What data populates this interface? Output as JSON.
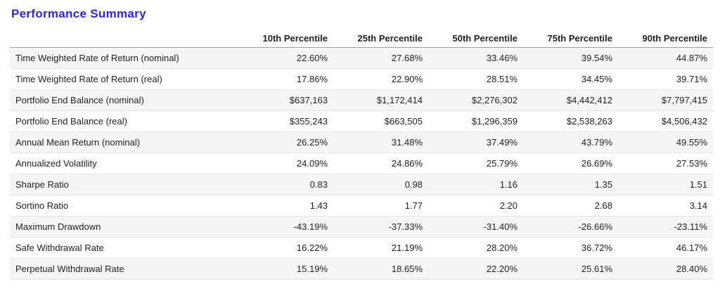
{
  "page": {
    "title": "Performance Summary"
  },
  "colors": {
    "accent": "#2c24ee",
    "stripe": "#f5f5f5",
    "header-border": "#9e9e9e",
    "row-border": "#e4e4e4"
  },
  "chart_data": {
    "type": "table",
    "title": "Performance Summary",
    "columns": [
      "",
      "10th Percentile",
      "25th Percentile",
      "50th Percentile",
      "75th Percentile",
      "90th Percentile"
    ],
    "rows": [
      {
        "label": "Time Weighted Rate of Return (nominal)",
        "values": [
          "22.60%",
          "27.68%",
          "33.46%",
          "39.54%",
          "44.87%"
        ]
      },
      {
        "label": "Time Weighted Rate of Return (real)",
        "values": [
          "17.86%",
          "22.90%",
          "28.51%",
          "34.45%",
          "39.71%"
        ]
      },
      {
        "label": "Portfolio End Balance (nominal)",
        "values": [
          "$637,163",
          "$1,172,414",
          "$2,276,302",
          "$4,442,412",
          "$7,797,415"
        ]
      },
      {
        "label": "Portfolio End Balance (real)",
        "values": [
          "$355,243",
          "$663,505",
          "$1,296,359",
          "$2,538,263",
          "$4,506,432"
        ]
      },
      {
        "label": "Annual Mean Return (nominal)",
        "values": [
          "26.25%",
          "31.48%",
          "37.49%",
          "43.79%",
          "49.55%"
        ]
      },
      {
        "label": "Annualized Volatility",
        "values": [
          "24.09%",
          "24.86%",
          "25.79%",
          "26.69%",
          "27.53%"
        ]
      },
      {
        "label": "Sharpe Ratio",
        "values": [
          "0.83",
          "0.98",
          "1.16",
          "1.35",
          "1.51"
        ]
      },
      {
        "label": "Sortino Ratio",
        "values": [
          "1.43",
          "1.77",
          "2.20",
          "2.68",
          "3.14"
        ]
      },
      {
        "label": "Maximum Drawdown",
        "values": [
          "-43.19%",
          "-37.33%",
          "-31.40%",
          "-26.66%",
          "-23.11%"
        ]
      },
      {
        "label": "Safe Withdrawal Rate",
        "values": [
          "16.22%",
          "21.19%",
          "28.20%",
          "36.72%",
          "46.17%"
        ]
      },
      {
        "label": "Perpetual Withdrawal Rate",
        "values": [
          "15.19%",
          "18.65%",
          "22.20%",
          "25.61%",
          "28.40%"
        ]
      }
    ]
  }
}
